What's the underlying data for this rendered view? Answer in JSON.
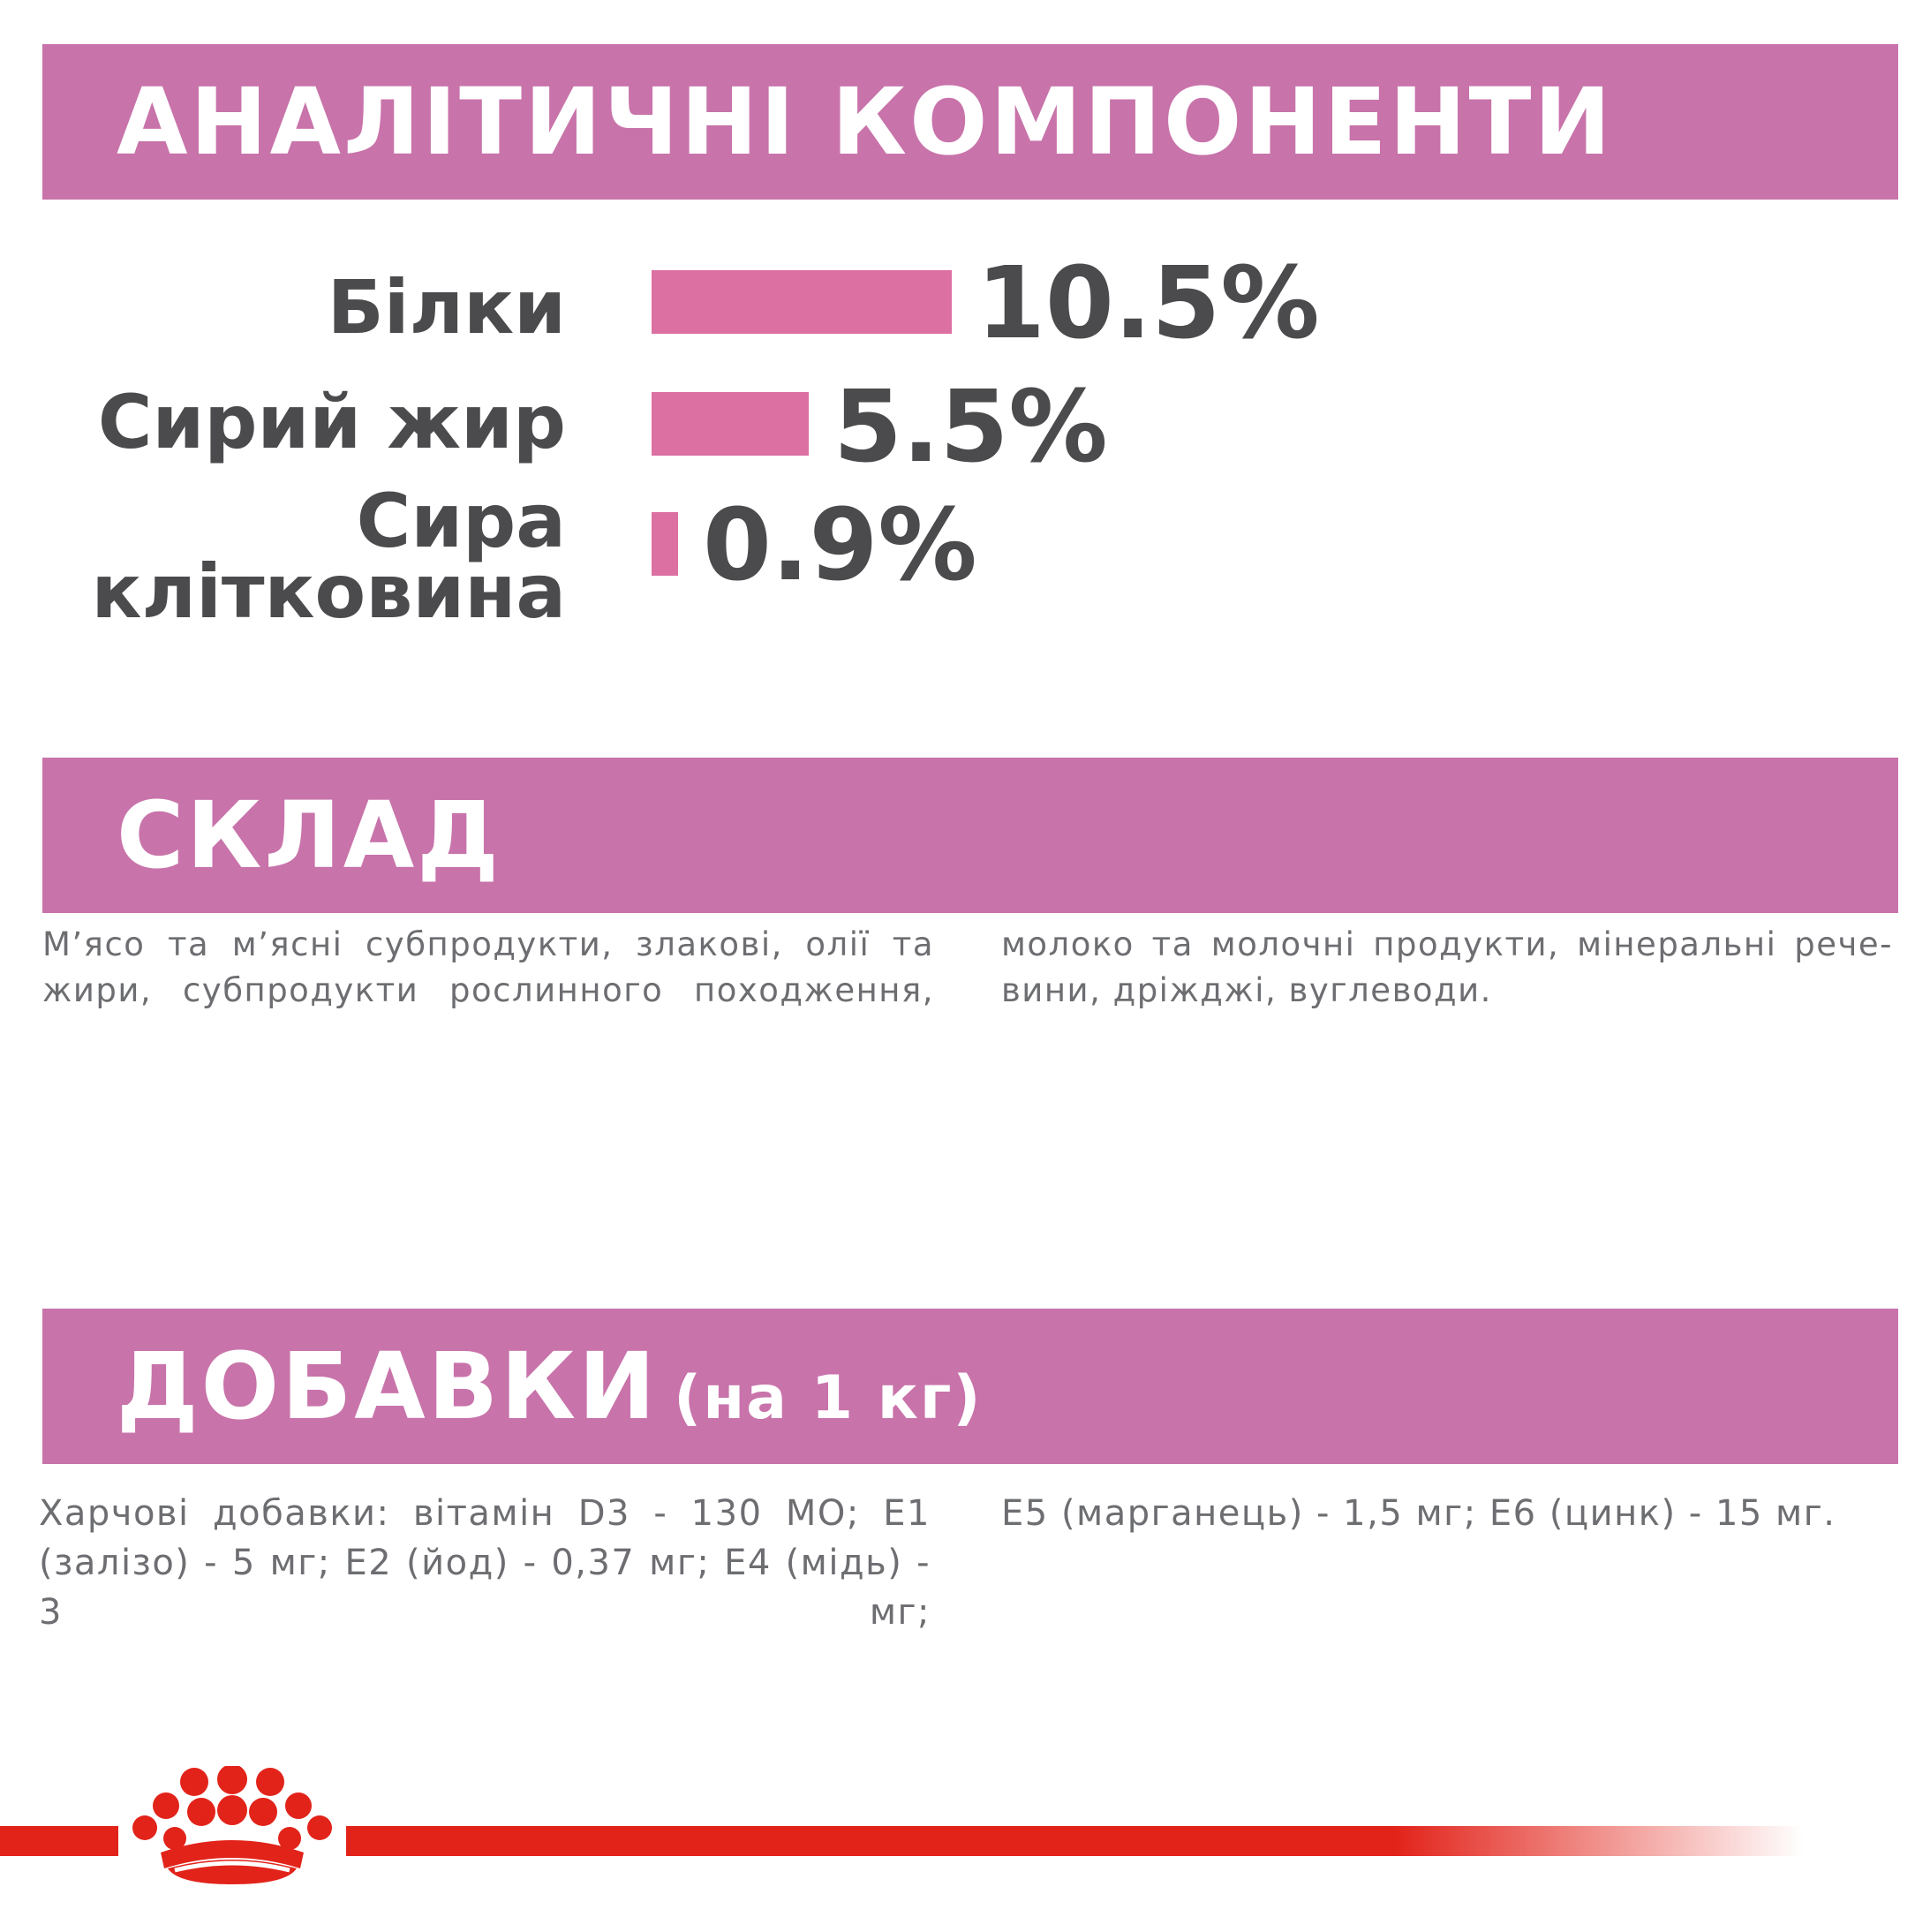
{
  "colors": {
    "band": "#c873aa",
    "bar": "#dc70a2",
    "text_dark": "#4b4b4d",
    "text_body": "#6d6e71",
    "brand_red": "#e2231a"
  },
  "analytic": {
    "title": "АНАЛІТИЧНІ КОМПОНЕНТИ",
    "rows": [
      {
        "label_lines": [
          "Білки"
        ],
        "value": "10.5%",
        "fraction": 1.0
      },
      {
        "label_lines": [
          "Сирий жир"
        ],
        "value": "5.5%",
        "fraction": 0.524
      },
      {
        "label_lines": [
          "Сира",
          "клітковина"
        ],
        "value": "0.9%",
        "fraction": 0.086
      }
    ]
  },
  "composition": {
    "title": "СКЛАД",
    "left_lines": [
      "М’ясо та м’ясні субпродукти, злакові, олії та",
      "жири, субпродукти рослинного походження,"
    ],
    "right_lines": [
      "молоко та молочні продукти, мінеральні рече-",
      "вини, дріжджі, вуглеводи."
    ]
  },
  "additives": {
    "title": "ДОБАВКИ",
    "title_suffix": "(на 1 кг)",
    "left_lines": [
      "Харчові добавки: вітамін D3 - 130 МО; Е1",
      "(залізо) - 5 мг; Е2 (йод) - 0,37 мг; Е4 (мідь) - 3 мг;"
    ],
    "right_lines": [
      "Е5 (марганець) - 1,5 мг; Е6 (цинк) - 15 мг."
    ]
  },
  "brand": {
    "logo_icon": "royal-canin-crown-icon"
  }
}
